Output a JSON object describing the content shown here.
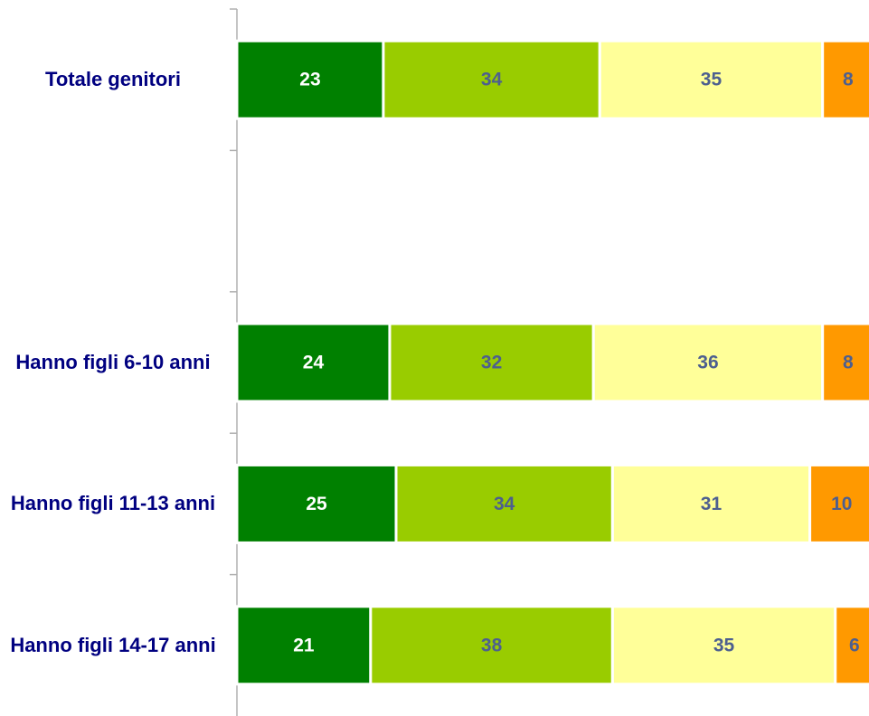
{
  "chart_data": {
    "type": "stacked_bar",
    "orientation": "horizontal",
    "categories": [
      "Totale genitori",
      null,
      "Hanno figli 6-10 anni",
      "Hanno figli 11-13 anni",
      "Hanno figli 14-17 anni"
    ],
    "xlim": [
      0,
      100
    ],
    "series": [
      {
        "color": "#008000",
        "label_color": "#ffffff",
        "values": [
          23,
          null,
          24,
          25,
          21
        ]
      },
      {
        "color": "#99cc00",
        "label_color": "#4d5f8f",
        "values": [
          34,
          null,
          32,
          34,
          38
        ]
      },
      {
        "color": "#ffff99",
        "label_color": "#4d5f8f",
        "values": [
          35,
          null,
          36,
          31,
          35
        ]
      },
      {
        "color": "#ff9900",
        "label_color": "#4d5f8f",
        "values": [
          8,
          null,
          8,
          10,
          6
        ]
      }
    ]
  }
}
